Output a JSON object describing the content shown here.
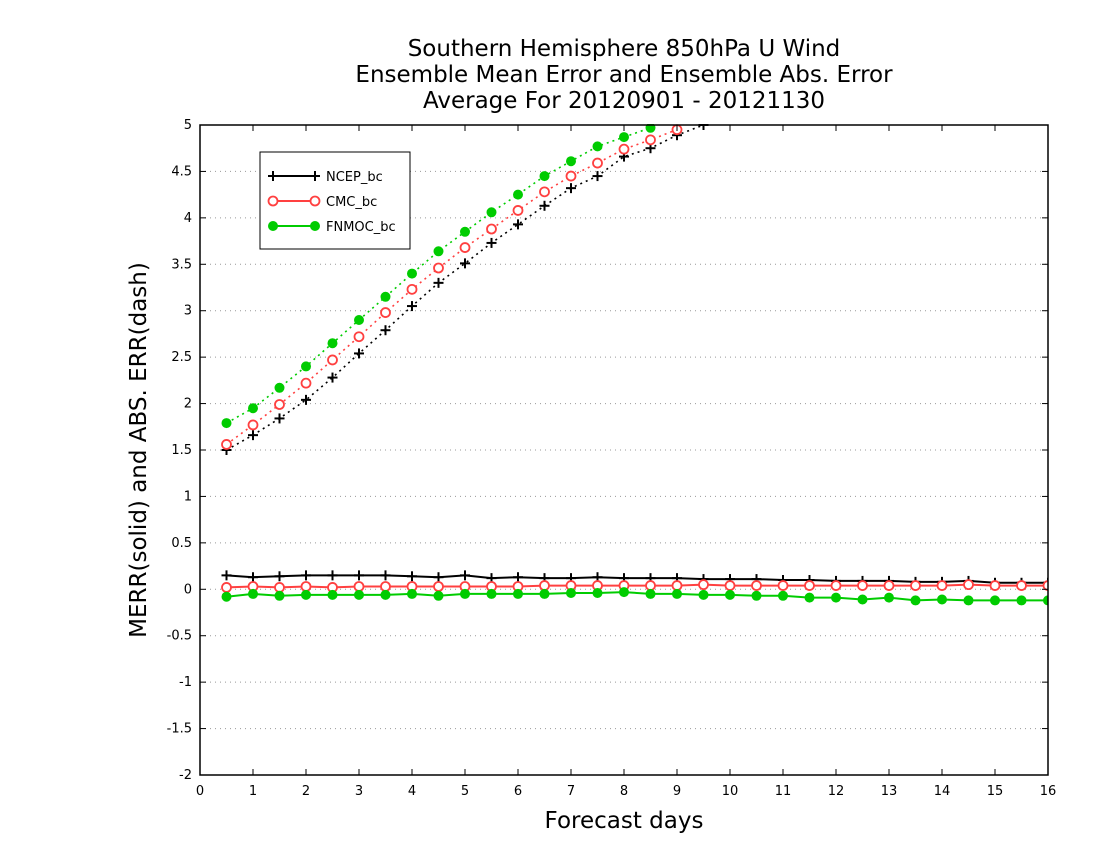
{
  "chart_data": {
    "type": "line",
    "title": [
      "Southern Hemisphere 850hPa U Wind",
      "Ensemble Mean Error and Ensemble Abs. Error",
      "Average For 20120901 - 20121130"
    ],
    "xlabel": "Forecast days",
    "ylabel": "MERR(solid) and ABS. ERR(dash)",
    "xlim": [
      0,
      16
    ],
    "ylim": [
      -2,
      5
    ],
    "xticks": [
      0,
      1,
      2,
      3,
      4,
      5,
      6,
      7,
      8,
      9,
      10,
      11,
      12,
      13,
      14,
      15,
      16
    ],
    "yticks": [
      -2,
      -1.5,
      -1,
      -0.5,
      0,
      0.5,
      1,
      1.5,
      2,
      2.5,
      3,
      3.5,
      4,
      4.5,
      5
    ],
    "ytick_labels": [
      "-2",
      "-1.5",
      "-1",
      "-0.5",
      "0",
      "0.5",
      "1",
      "1.5",
      "2",
      "2.5",
      "3",
      "3.5",
      "4",
      "4.5",
      "5"
    ],
    "grid": "horizontal-dotted",
    "legend_position": "top-left",
    "x": [
      0.5,
      1,
      1.5,
      2,
      2.5,
      3,
      3.5,
      4,
      4.5,
      5,
      5.5,
      6,
      6.5,
      7,
      7.5,
      8,
      8.5,
      9,
      9.5,
      10,
      10.5,
      11,
      11.5,
      12,
      12.5,
      13,
      13.5,
      14,
      14.5,
      15,
      15.5,
      16
    ],
    "series": [
      {
        "name": "NCEP_bc",
        "color": "#000000",
        "marker": "plus",
        "merr": [
          0.15,
          0.13,
          0.14,
          0.15,
          0.15,
          0.15,
          0.15,
          0.14,
          0.13,
          0.15,
          0.12,
          0.13,
          0.12,
          0.12,
          0.13,
          0.12,
          0.12,
          0.12,
          0.11,
          0.11,
          0.11,
          0.1,
          0.1,
          0.09,
          0.09,
          0.09,
          0.08,
          0.08,
          0.09,
          0.07,
          0.07,
          0.07
        ],
        "abs_err": [
          1.5,
          1.66,
          1.84,
          2.04,
          2.28,
          2.54,
          2.79,
          3.05,
          3.3,
          3.51,
          3.73,
          3.93,
          4.13,
          4.32,
          4.45,
          4.66,
          4.75,
          4.89,
          5.0,
          null,
          null,
          null,
          null,
          null,
          null,
          null,
          null,
          null,
          null,
          null,
          null,
          null
        ]
      },
      {
        "name": "CMC_bc",
        "color": "#ff4040",
        "marker": "open-circle",
        "merr": [
          0.02,
          0.03,
          0.02,
          0.03,
          0.02,
          0.03,
          0.03,
          0.03,
          0.03,
          0.03,
          0.03,
          0.03,
          0.04,
          0.04,
          0.04,
          0.04,
          0.04,
          0.04,
          0.05,
          0.04,
          0.04,
          0.04,
          0.04,
          0.04,
          0.04,
          0.04,
          0.04,
          0.04,
          0.05,
          0.04,
          0.04,
          0.04
        ],
        "abs_err": [
          1.56,
          1.77,
          1.99,
          2.22,
          2.47,
          2.72,
          2.98,
          3.23,
          3.46,
          3.68,
          3.88,
          4.08,
          4.28,
          4.45,
          4.59,
          4.74,
          4.84,
          4.95,
          null,
          null,
          null,
          null,
          null,
          null,
          null,
          null,
          null,
          null,
          null,
          null,
          null,
          null
        ]
      },
      {
        "name": "FNMOC_bc",
        "color": "#00cc00",
        "marker": "filled-circle",
        "merr": [
          -0.08,
          -0.05,
          -0.07,
          -0.06,
          -0.06,
          -0.06,
          -0.06,
          -0.05,
          -0.07,
          -0.05,
          -0.05,
          -0.05,
          -0.05,
          -0.04,
          -0.04,
          -0.03,
          -0.05,
          -0.05,
          -0.06,
          -0.06,
          -0.07,
          -0.07,
          -0.09,
          -0.09,
          -0.11,
          -0.09,
          -0.12,
          -0.11,
          -0.12,
          -0.12,
          -0.12,
          -0.12
        ],
        "abs_err": [
          1.79,
          1.95,
          2.17,
          2.4,
          2.65,
          2.9,
          3.15,
          3.4,
          3.64,
          3.85,
          4.06,
          4.25,
          4.45,
          4.61,
          4.77,
          4.87,
          4.97,
          null,
          null,
          null,
          null,
          null,
          null,
          null,
          null,
          null,
          null,
          null,
          null,
          null,
          null,
          null
        ]
      }
    ]
  }
}
